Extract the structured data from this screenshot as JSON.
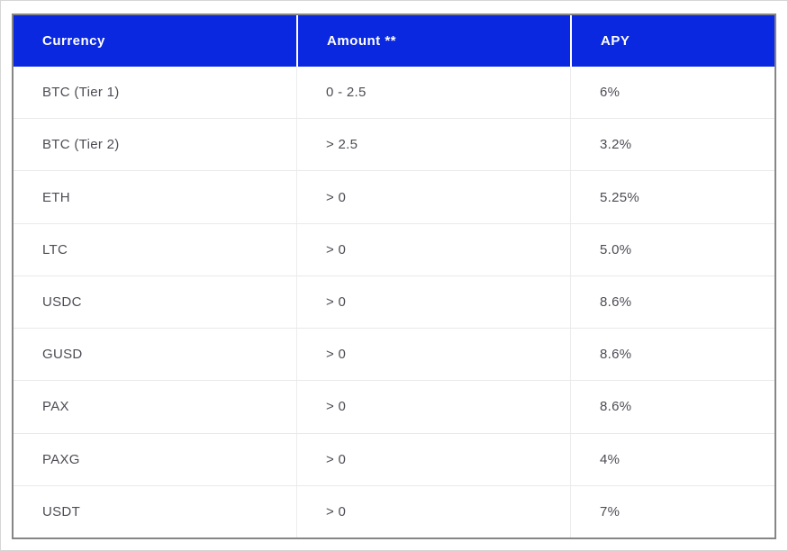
{
  "table": {
    "columns": [
      {
        "label": "Currency"
      },
      {
        "label": "Amount **"
      },
      {
        "label": "APY"
      }
    ],
    "rows": [
      {
        "currency": "BTC (Tier 1)",
        "amount": "0 - 2.5",
        "apy": "6%"
      },
      {
        "currency": "BTC (Tier 2)",
        "amount": "> 2.5",
        "apy": "3.2%"
      },
      {
        "currency": "ETH",
        "amount": "> 0",
        "apy": "5.25%"
      },
      {
        "currency": "LTC",
        "amount": "> 0",
        "apy": "5.0%"
      },
      {
        "currency": "USDC",
        "amount": "> 0",
        "apy": "8.6%"
      },
      {
        "currency": "GUSD",
        "amount": "> 0",
        "apy": "8.6%"
      },
      {
        "currency": "PAX",
        "amount": "> 0",
        "apy": "8.6%"
      },
      {
        "currency": "PAXG",
        "amount": "> 0",
        "apy": "4%"
      },
      {
        "currency": "USDT",
        "amount": "> 0",
        "apy": "7%"
      }
    ],
    "colors": {
      "header_bg": "#0a28e0",
      "header_text": "#ffffff",
      "body_text": "#4c4c55",
      "table_border": "#868686",
      "row_divider": "#e9e9e9"
    }
  }
}
